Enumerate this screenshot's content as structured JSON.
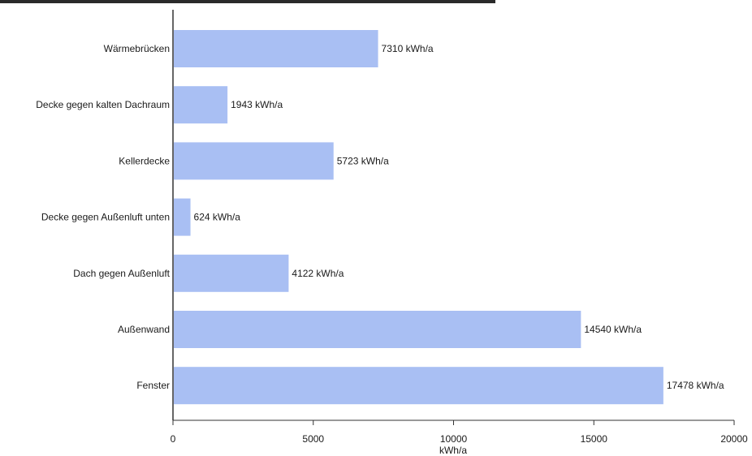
{
  "chart_data": {
    "type": "bar",
    "orientation": "horizontal",
    "title": "",
    "xlabel": "kWh/a",
    "ylabel": "",
    "xlim": [
      0,
      20000
    ],
    "x_ticks": [
      0,
      5000,
      10000,
      15000,
      20000
    ],
    "categories": [
      "Wärmebrücken",
      "Decke gegen kalten Dachraum",
      "Kellerdecke",
      "Decke gegen Außenluft unten",
      "Dach gegen Außenluft",
      "Außenwand",
      "Fenster"
    ],
    "values": [
      7310,
      1943,
      5723,
      624,
      4122,
      14540,
      17478
    ],
    "value_labels": [
      "7310 kWh/a",
      "1943 kWh/a",
      "5723 kWh/a",
      "624 kWh/a",
      "4122 kWh/a",
      "14540 kWh/a",
      "17478 kWh/a"
    ],
    "bar_color": "#a9bff3",
    "grid": false
  }
}
